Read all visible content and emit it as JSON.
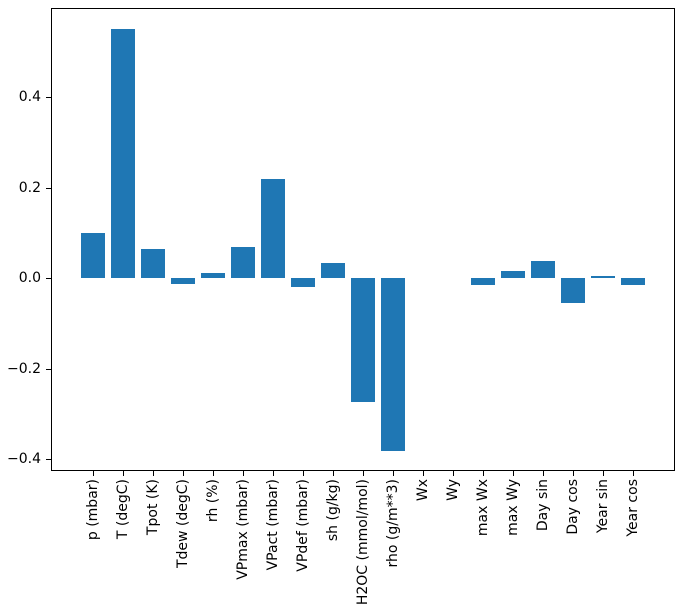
{
  "chart_data": {
    "type": "bar",
    "title": "",
    "xlabel": "",
    "ylabel": "",
    "categories": [
      "p (mbar)",
      "T (degC)",
      "Tpot (K)",
      "Tdew (degC)",
      "rh (%)",
      "VPmax (mbar)",
      "VPact (mbar)",
      "VPdef (mbar)",
      "sh (g/kg)",
      "H2OC (mmol/mol)",
      "rho (g/m**3)",
      "Wx",
      "Wy",
      "max Wx",
      "max Wy",
      "Day sin",
      "Day cos",
      "Year sin",
      "Year cos"
    ],
    "values": [
      0.1,
      0.55,
      0.065,
      -0.014,
      0.012,
      0.068,
      0.22,
      -0.02,
      0.033,
      -0.273,
      -0.382,
      0.0,
      0.0,
      -0.015,
      0.016,
      0.037,
      -0.056,
      0.004,
      -0.015
    ],
    "bar_color": "#1f77b4",
    "axis_color": "#000000",
    "ylim": [
      -0.4265,
      0.597
    ],
    "yticks": [
      -0.4,
      -0.2,
      0.0,
      0.2,
      0.4
    ],
    "ytick_labels": [
      "−0.4",
      "−0.2",
      "0.0",
      "0.2",
      "0.4"
    ],
    "grid": false,
    "legend_position": "none"
  }
}
